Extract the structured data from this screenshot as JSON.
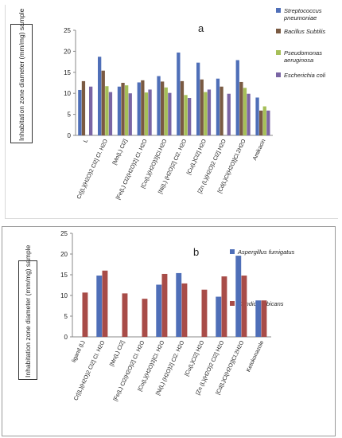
{
  "colors": {
    "Streptococcus pneumoniae": "#4f6fb8",
    "Bacillus Subtilis": "#7a5a42",
    "Pseudomonas aeruginosa": "#a6bf58",
    "Escherichia coli": "#7a65a4",
    "Aspergillus fumigatus": "#4f6fb8",
    "Candida albicans": "#a84c48"
  },
  "chart_data": [
    {
      "type": "bar",
      "panel": "a",
      "title": "a",
      "ylabel": "Inhabitation zone diameter (mm/mg) sample",
      "ylim": [
        0,
        25
      ],
      "yticks": [
        "0",
        "5",
        "10",
        "15",
        "20",
        "25"
      ],
      "legend_position": "top-right",
      "categories": [
        "L",
        "Cr[(L)(H2O)2 Cl2] Cl. H2O",
        "[Mn(L) Cl2]",
        "[Fe(L) Cl2(H2O)2] Cl. H2O",
        "[Co(L)(H2O)3]Cl.H2O",
        "[Ni(L) (H2O)2] Cl2. H2O",
        "[Cu(L)Cl2] H2O",
        "[Zn (L)(H2O)2 Cl2] H2O",
        "[Cd(L)Cl(H2O)]Cl.2H2O",
        "Amikacin"
      ],
      "series": [
        {
          "name": "Streptococcus pneumoniae",
          "values": [
            10.8,
            18.7,
            11.6,
            12.6,
            14.1,
            19.7,
            17.3,
            13.5,
            17.9,
            9.0
          ]
        },
        {
          "name": "Bacillus Subtilis",
          "values": [
            12.9,
            15.4,
            12.5,
            13.1,
            12.8,
            12.9,
            13.3,
            11.6,
            12.7,
            5.9
          ]
        },
        {
          "name": "Pseudomonas aeruginosa",
          "values": [
            0,
            11.7,
            11.9,
            10.2,
            11.4,
            9.6,
            10.3,
            0,
            11.3,
            6.9
          ]
        },
        {
          "name": "Escherichia coli",
          "values": [
            11.6,
            10.3,
            10.0,
            10.9,
            10.1,
            8.9,
            10.9,
            9.9,
            9.9,
            5.9
          ]
        }
      ]
    },
    {
      "type": "bar",
      "panel": "b",
      "title": "b",
      "ylabel": "Inhabitation zone diameter (mm/mg) sample",
      "ylim": [
        0,
        25
      ],
      "yticks": [
        "0",
        "5",
        "10",
        "15",
        "20",
        "25"
      ],
      "legend_position": "top-right",
      "categories": [
        "ligand (L)",
        "Cr[(L)(H2O)2 Cl2] Cl. H2O",
        "[Mn(L) Cl2]",
        "[Fe(L) Cl2(H2O)2] Cl. H2O",
        "[Co(L)(H2O)3]Cl. H2O",
        "[Ni(L) (H2O)2] Cl2. H2O",
        "[Cu(L)Cl2] H2O",
        "[Zn (L)(H2O)2 Cl2] H2O",
        "[Cd(L)Cl(H2O)]Cl.2H2O",
        "Ketokonazole"
      ],
      "series": [
        {
          "name": "Aspergillus fumigatus",
          "values": [
            0,
            14.8,
            0,
            0,
            12.6,
            15.4,
            0,
            9.7,
            19.6,
            8.8
          ]
        },
        {
          "name": "Candida albicans",
          "values": [
            10.7,
            16.0,
            10.5,
            9.2,
            15.2,
            12.9,
            11.4,
            14.6,
            14.8,
            8.8
          ]
        }
      ]
    }
  ]
}
